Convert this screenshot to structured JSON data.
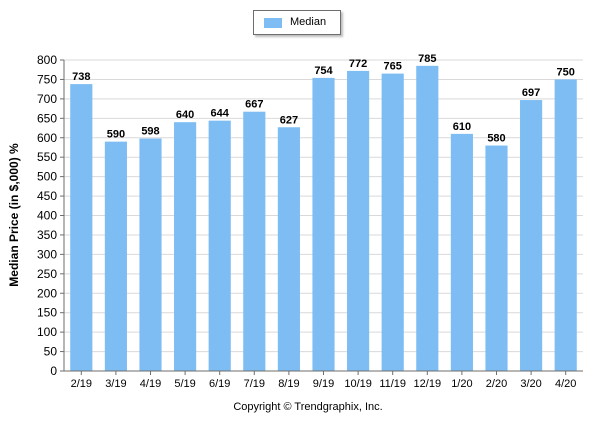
{
  "chart_data": {
    "type": "bar",
    "categories": [
      "2/19",
      "3/19",
      "4/19",
      "5/19",
      "6/19",
      "7/19",
      "8/19",
      "9/19",
      "10/19",
      "11/19",
      "12/19",
      "1/20",
      "2/20",
      "3/20",
      "4/20"
    ],
    "series": [
      {
        "name": "Median",
        "values": [
          738,
          590,
          598,
          640,
          644,
          667,
          627,
          754,
          772,
          765,
          785,
          610,
          580,
          697,
          750
        ]
      }
    ],
    "title": "",
    "xlabel": "",
    "ylabel": "Median Price (in $,000) %",
    "ylim": [
      0,
      800
    ],
    "yticks": [
      0,
      50,
      100,
      150,
      200,
      250,
      300,
      350,
      400,
      450,
      500,
      550,
      600,
      650,
      700,
      750,
      800
    ],
    "grid": true,
    "legend_position": "top-center",
    "bar_color": "#7dbdf3",
    "data_labels": true
  },
  "footer": {
    "copyright": "Copyright © Trendgraphix, Inc."
  }
}
